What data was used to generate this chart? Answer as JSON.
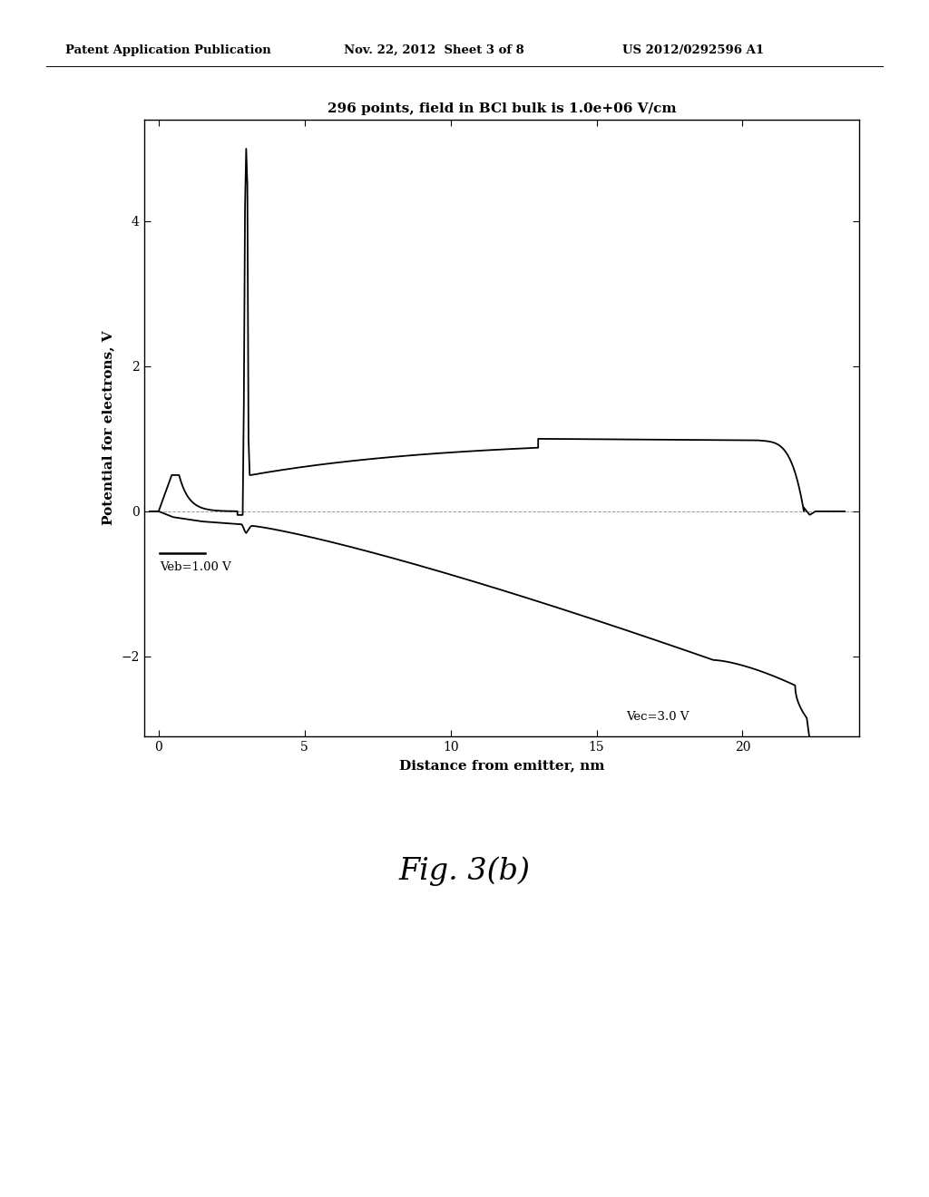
{
  "title": "296 points, field in BCl bulk is 1.0e+06 V/cm",
  "xlabel": "Distance from emitter, nm",
  "ylabel": "Potential for electrons, V",
  "xlim": [
    -0.5,
    24.0
  ],
  "ylim": [
    -3.1,
    5.4
  ],
  "yticks": [
    -2,
    0,
    2,
    4
  ],
  "xticks": [
    0,
    5,
    10,
    15,
    20
  ],
  "veb_label": "Veb=1.00 V",
  "vec_label": "Vec=3.0 V",
  "header_left": "Patent Application Publication",
  "header_center": "Nov. 22, 2012  Sheet 3 of 8",
  "header_right": "US 2012/0292596 A1",
  "fig_label": "Fig. 3(b)",
  "background_color": "#ffffff",
  "plot_bg_color": "#ffffff",
  "line_color": "#000000"
}
